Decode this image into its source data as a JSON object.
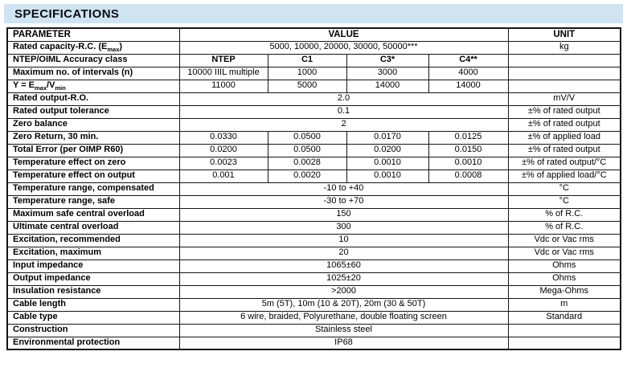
{
  "title": "SPECIFICATIONS",
  "colors": {
    "banner_bg": "#cfe3f1",
    "border": "#151515"
  },
  "table": {
    "headers": {
      "parameter": "PARAMETER",
      "value": "VALUE",
      "unit": "UNIT"
    },
    "rows": [
      {
        "kind": "full",
        "param": [
          {
            "text": "Rated capacity-R.C. (E"
          },
          {
            "text": "max",
            "sub": true
          },
          {
            "text": ")"
          }
        ],
        "value": "5000, 10000, 20000, 30000, 50000***",
        "unit": "kg"
      },
      {
        "kind": "cols",
        "bold": true,
        "param": [
          {
            "text": "NTEP/OIML Accuracy class"
          }
        ],
        "values": [
          "NTEP",
          "C1",
          "C3*",
          "C4**"
        ],
        "unit": ""
      },
      {
        "kind": "cols",
        "param": [
          {
            "text": "Maximum no. of intervals (n)"
          }
        ],
        "values": [
          "10000 IIIL multiple",
          "1000",
          "3000",
          "4000"
        ],
        "unit": ""
      },
      {
        "kind": "cols",
        "param": [
          {
            "text": "Y = E"
          },
          {
            "text": "max",
            "sub": true
          },
          {
            "text": "/V"
          },
          {
            "text": "min",
            "sub": true
          }
        ],
        "values": [
          "11000",
          "5000",
          "14000",
          "14000"
        ],
        "unit": ""
      },
      {
        "kind": "full",
        "param": [
          {
            "text": "Rated output-R.O."
          }
        ],
        "value": "2.0",
        "unit": "mV/V"
      },
      {
        "kind": "full",
        "param": [
          {
            "text": "Rated output tolerance"
          }
        ],
        "value": "0.1",
        "unit": "±% of rated output"
      },
      {
        "kind": "full",
        "param": [
          {
            "text": "Zero balance"
          }
        ],
        "value": "2",
        "unit": "±% of rated output"
      },
      {
        "kind": "cols",
        "param": [
          {
            "text": "Zero Return, 30 min."
          }
        ],
        "values": [
          "0.0330",
          "0.0500",
          "0.0170",
          "0.0125"
        ],
        "unit": "±% of applied load"
      },
      {
        "kind": "cols",
        "param": [
          {
            "text": "Total Error (per OIMP R60)"
          }
        ],
        "values": [
          "0.0200",
          "0.0500",
          "0.0200",
          "0.0150"
        ],
        "unit": "±% of rated output"
      },
      {
        "kind": "cols",
        "param": [
          {
            "text": "Temperature effect on zero"
          }
        ],
        "values": [
          "0.0023",
          "0.0028",
          "0.0010",
          "0.0010"
        ],
        "unit": "±% of rated output/°C"
      },
      {
        "kind": "cols",
        "param": [
          {
            "text": "Temperature effect on output"
          }
        ],
        "values": [
          "0.001",
          "0.0020",
          "0.0010",
          "0.0008"
        ],
        "unit": "±% of applied load/°C"
      },
      {
        "kind": "full",
        "param": [
          {
            "text": "Temperature range, compensated"
          }
        ],
        "value": "-10 to +40",
        "unit": "°C"
      },
      {
        "kind": "full",
        "param": [
          {
            "text": "Temperature range, safe"
          }
        ],
        "value": "-30 to +70",
        "unit": "°C"
      },
      {
        "kind": "full",
        "param": [
          {
            "text": "Maximum safe central overload"
          }
        ],
        "value": "150",
        "unit": "% of R.C."
      },
      {
        "kind": "full",
        "param": [
          {
            "text": "Ultimate central overload"
          }
        ],
        "value": "300",
        "unit": "% of R.C."
      },
      {
        "kind": "full",
        "param": [
          {
            "text": "Excitation, recommended"
          }
        ],
        "value": "10",
        "unit": "Vdc or Vac rms"
      },
      {
        "kind": "full",
        "param": [
          {
            "text": "Excitation, maximum"
          }
        ],
        "value": "20",
        "unit": "Vdc or Vac rms"
      },
      {
        "kind": "full",
        "param": [
          {
            "text": "Input impedance"
          }
        ],
        "value": "1065±60",
        "unit": "Ohms"
      },
      {
        "kind": "full",
        "param": [
          {
            "text": "Output impedance"
          }
        ],
        "value": "1025±20",
        "unit": "Ohms"
      },
      {
        "kind": "full",
        "param": [
          {
            "text": "Insulation resistance"
          }
        ],
        "value": ">2000",
        "unit": "Mega-Ohms"
      },
      {
        "kind": "full",
        "param": [
          {
            "text": "Cable length"
          }
        ],
        "value": "5m (5T), 10m (10 & 20T), 20m (30 & 50T)",
        "unit": "m"
      },
      {
        "kind": "full",
        "param": [
          {
            "text": "Cable type"
          }
        ],
        "value": "6 wire, braided, Polyurethane, double floating screen",
        "unit": "Standard"
      },
      {
        "kind": "full",
        "param": [
          {
            "text": "Construction"
          }
        ],
        "value": "Stainless steel",
        "unit": ""
      },
      {
        "kind": "full",
        "param": [
          {
            "text": "Environmental protection"
          }
        ],
        "value": "IP68",
        "unit": ""
      }
    ]
  }
}
